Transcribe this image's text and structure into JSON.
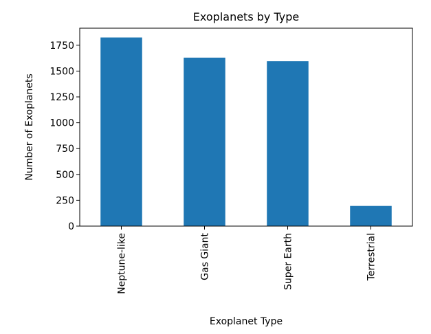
{
  "chart_data": {
    "type": "bar",
    "title": "Exoplanets by Type",
    "xlabel": "Exoplanet Type",
    "ylabel": "Number of Exoplanets",
    "categories": [
      "Neptune-like",
      "Gas Giant",
      "Super Earth",
      "Terrestrial"
    ],
    "values": [
      1825,
      1630,
      1595,
      195
    ],
    "ylim": [
      0,
      1915
    ],
    "yticks": [
      0,
      250,
      500,
      750,
      1000,
      1250,
      1500,
      1750
    ],
    "grid": false,
    "legend": "none",
    "bar_color": "#1f77b4"
  }
}
